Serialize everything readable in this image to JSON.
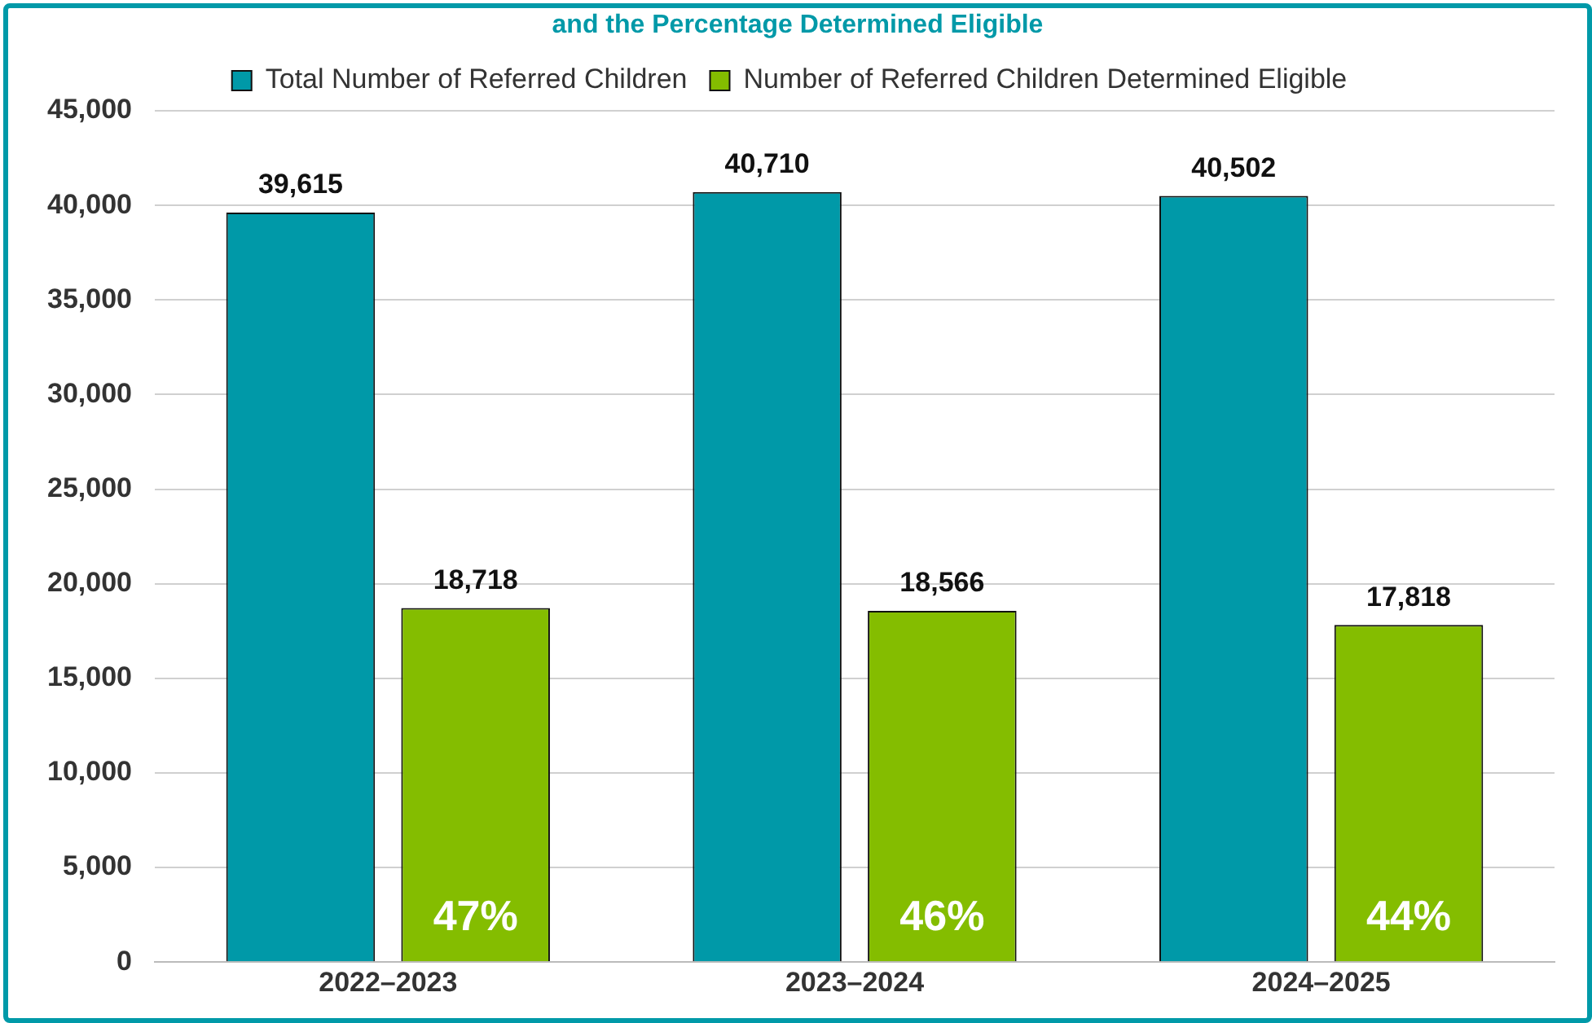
{
  "chart_data": {
    "type": "bar",
    "title": "and the Percentage Determined Eligible",
    "categories": [
      "2022–2023",
      "2023–2024",
      "2024–2025"
    ],
    "series": [
      {
        "name": "Total Number of Referred Children",
        "color": "#0099a8",
        "values": [
          39615,
          40710,
          40502
        ],
        "value_labels": [
          "39,615",
          "40,710",
          "40,502"
        ]
      },
      {
        "name": "Number of Referred Children Determined Eligible",
        "color": "#84bd00",
        "values": [
          18718,
          18566,
          17818
        ],
        "value_labels": [
          "18,718",
          "18,566",
          "17,818"
        ]
      }
    ],
    "ylim": [
      0,
      45000
    ],
    "yticks": [
      {
        "value": 0,
        "label": "0"
      },
      {
        "value": 5000,
        "label": "5,000"
      },
      {
        "value": 10000,
        "label": "10,000"
      },
      {
        "value": 15000,
        "label": "15,000"
      },
      {
        "value": 20000,
        "label": "20,000"
      },
      {
        "value": 25000,
        "label": "25,000"
      },
      {
        "value": 30000,
        "label": "30,000"
      },
      {
        "value": 35000,
        "label": "35,000"
      },
      {
        "value": 40000,
        "label": "40,000"
      },
      {
        "value": 45000,
        "label": "45,000"
      }
    ],
    "grid": "y",
    "legend": "top",
    "annotations": [
      "47%",
      "46%",
      "44%"
    ]
  }
}
